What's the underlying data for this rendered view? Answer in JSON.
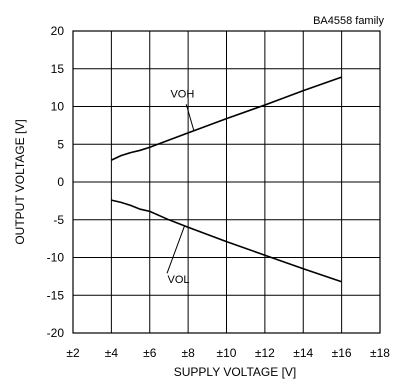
{
  "chart_data": {
    "type": "line",
    "annotation": "BA4558  family",
    "xlabel": "SUPPLY VOLTAGE [V]",
    "ylabel": "OUTPUT VOLTAGE [V]",
    "xlim": [
      2,
      18
    ],
    "ylim": [
      -20,
      20
    ],
    "grid": true,
    "x_ticks": [
      2,
      4,
      6,
      8,
      10,
      12,
      14,
      16,
      18
    ],
    "x_tick_labels": [
      "±2",
      "±4",
      "±6",
      "±8",
      "±10",
      "±12",
      "±14",
      "±16",
      "±18"
    ],
    "y_ticks": [
      -20,
      -15,
      -10,
      -5,
      0,
      5,
      10,
      15,
      20
    ],
    "y_tick_labels": [
      "-20",
      "-15",
      "-10",
      "-5",
      "0",
      "5",
      "10",
      "15",
      "20"
    ],
    "series": [
      {
        "name": "VOH",
        "x": [
          4,
          4.5,
          5,
          5.5,
          6,
          8,
          10,
          12,
          14,
          16
        ],
        "y": [
          2.9,
          3.5,
          3.9,
          4.2,
          4.6,
          6.5,
          8.4,
          10.2,
          12.1,
          13.9
        ]
      },
      {
        "name": "VOL",
        "x": [
          4,
          4.5,
          5,
          5.5,
          6,
          7,
          8,
          10,
          12,
          14,
          16
        ],
        "y": [
          -2.4,
          -2.7,
          -3.1,
          -3.6,
          -3.9,
          -5.0,
          -6.0,
          -7.9,
          -9.7,
          -11.5,
          -13.2
        ]
      }
    ]
  }
}
